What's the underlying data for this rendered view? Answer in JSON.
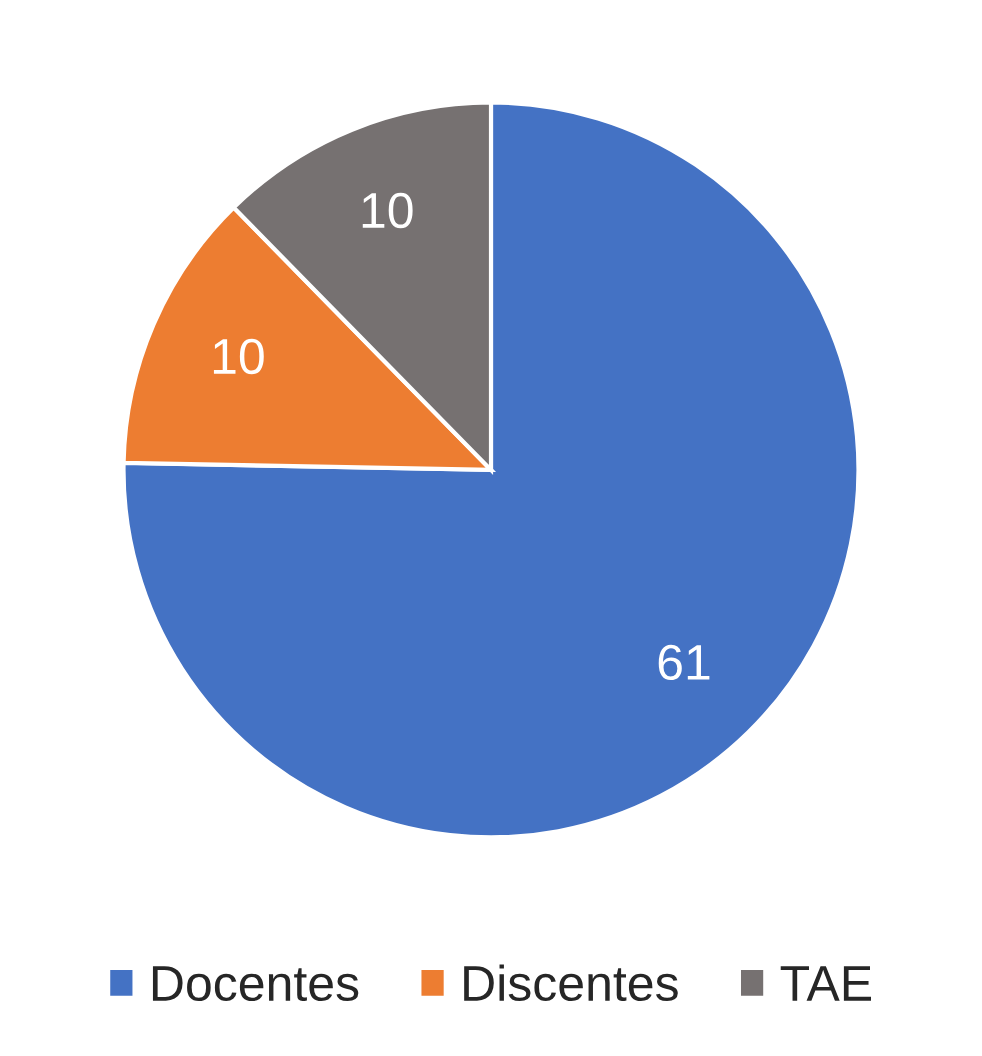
{
  "chart_data": {
    "type": "pie",
    "categories": [
      "Docentes",
      "Discentes",
      "TAE"
    ],
    "values": [
      61,
      10,
      10
    ],
    "colors": [
      "#4472c4",
      "#ed7d31",
      "#767171"
    ],
    "data_labels": true,
    "legend": "bottom"
  }
}
